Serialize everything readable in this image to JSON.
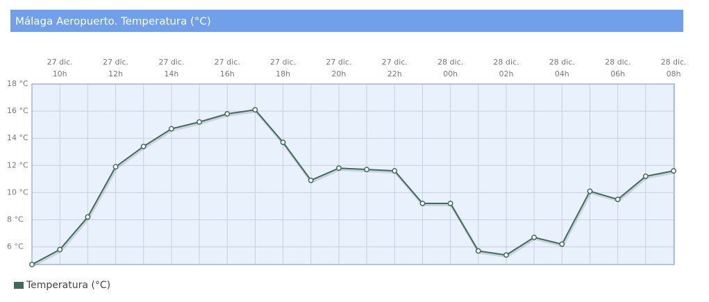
{
  "chart_data": {
    "type": "line",
    "title": "Málaga Aeropuerto. Temperatura (°C)",
    "categories": [
      null,
      [
        "27 dic.",
        "10h"
      ],
      null,
      [
        "27 dic.",
        "12h"
      ],
      null,
      [
        "27 dic.",
        "14h"
      ],
      null,
      [
        "27 dic.",
        "16h"
      ],
      null,
      [
        "27 dic.",
        "18h"
      ],
      null,
      [
        "27 dic.",
        "20h"
      ],
      null,
      [
        "27 dic.",
        "22h"
      ],
      null,
      [
        "28 dic.",
        "00h"
      ],
      null,
      [
        "28 dic.",
        "02h"
      ],
      null,
      [
        "28 dic.",
        "04h"
      ],
      null,
      [
        "28 dic.",
        "06h"
      ],
      null,
      [
        "28 dic.",
        "08h"
      ]
    ],
    "series": [
      {
        "name": "Temperatura (°C)",
        "color": "#3f6b5a",
        "values": [
          4.7,
          5.8,
          8.2,
          11.9,
          13.4,
          14.7,
          15.2,
          15.8,
          16.1,
          13.7,
          10.9,
          11.8,
          11.7,
          11.6,
          9.2,
          9.2,
          5.7,
          5.4,
          6.7,
          6.2,
          10.1,
          9.5,
          11.2,
          11.6
        ]
      }
    ],
    "ylim": [
      4.7,
      18
    ],
    "yticks": [
      {
        "value": 6,
        "label": "6 °C"
      },
      {
        "value": 8,
        "label": "8 °C"
      },
      {
        "value": 10,
        "label": "10 °C"
      },
      {
        "value": 12,
        "label": "12 °C"
      },
      {
        "value": 14,
        "label": "14 °C"
      },
      {
        "value": 16,
        "label": "16 °C"
      },
      {
        "value": 18,
        "label": "18 °C"
      }
    ],
    "grid": true,
    "legend": "bottom-left"
  }
}
